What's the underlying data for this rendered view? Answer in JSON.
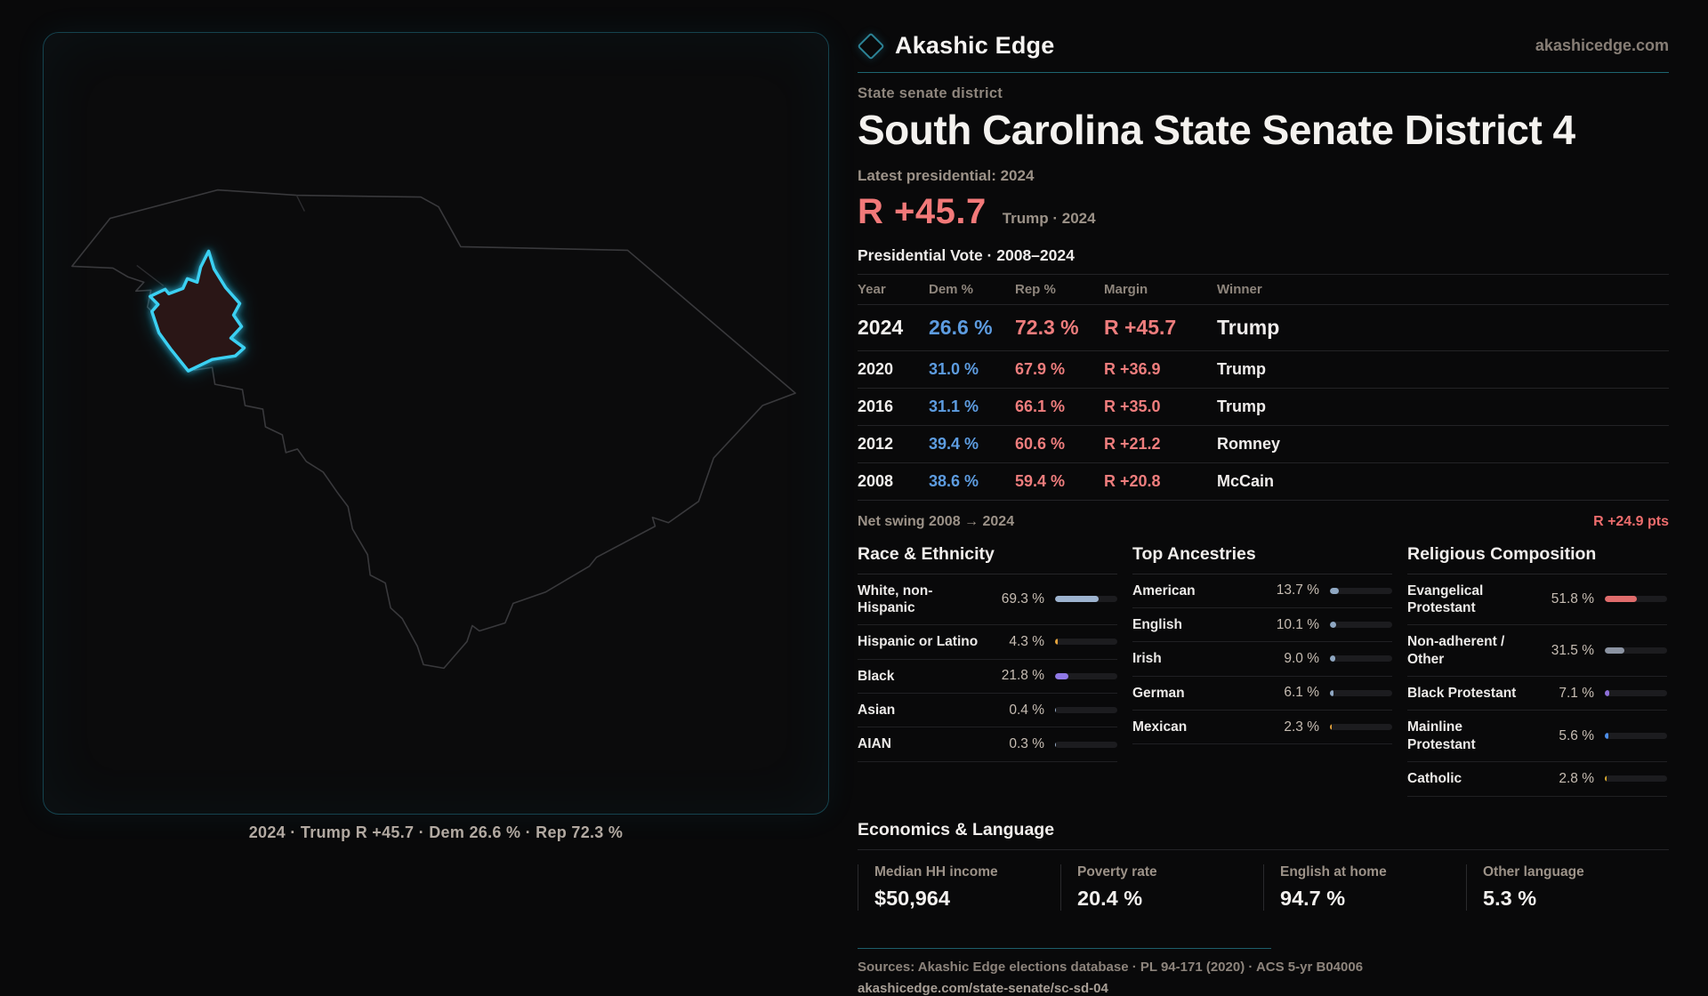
{
  "brand": {
    "name": "Akashic Edge",
    "domain": "akashicedge.com",
    "logo_icon": "diamond-outline-icon"
  },
  "map": {
    "caption": "2024 · Trump R +45.7 · Dem 26.6 % · Rep 72.3 %",
    "district_outline_color": "#3bd0f2",
    "district_fill_color": "#2a1518",
    "state_outline_color": "#39393c"
  },
  "header": {
    "kicker": "State senate district",
    "title": "South Carolina State Senate District 4",
    "latest_label": "Latest presidential: 2024",
    "margin_value": "R +45.7",
    "margin_caption": "Trump · 2024"
  },
  "table": {
    "title": "Presidential Vote · 2008–2024",
    "columns": [
      "Year",
      "Dem %",
      "Rep %",
      "Margin",
      "Winner"
    ],
    "rows": [
      {
        "year": "2024",
        "dem": "26.6 %",
        "rep": "72.3 %",
        "margin": "R +45.7",
        "winner": "Trump"
      },
      {
        "year": "2020",
        "dem": "31.0 %",
        "rep": "67.9 %",
        "margin": "R +36.9",
        "winner": "Trump"
      },
      {
        "year": "2016",
        "dem": "31.1 %",
        "rep": "66.1 %",
        "margin": "R +35.0",
        "winner": "Trump"
      },
      {
        "year": "2012",
        "dem": "39.4 %",
        "rep": "60.6 %",
        "margin": "R +21.2",
        "winner": "Romney"
      },
      {
        "year": "2008",
        "dem": "38.6 %",
        "rep": "59.4 %",
        "margin": "R +20.8",
        "winner": "McCain"
      }
    ]
  },
  "swing": {
    "label": "Net swing 2008 → 2024",
    "value": "R +24.9 pts"
  },
  "sections": [
    {
      "title": "Race & Ethnicity",
      "rows": [
        {
          "label": "White, non-Hispanic",
          "value": "69.3 %",
          "pct": 69.3,
          "color": "#9db3cf"
        },
        {
          "label": "Hispanic or Latino",
          "value": "4.3 %",
          "pct": 4.3,
          "color": "#e3a23c"
        },
        {
          "label": "Black",
          "value": "21.8 %",
          "pct": 21.8,
          "color": "#9079e6"
        },
        {
          "label": "Asian",
          "value": "0.4 %",
          "pct": 0.4,
          "color": "#9db3cf"
        },
        {
          "label": "AIAN",
          "value": "0.3 %",
          "pct": 0.3,
          "color": "#9db3cf"
        }
      ]
    },
    {
      "title": "Top Ancestries",
      "rows": [
        {
          "label": "American",
          "value": "13.7 %",
          "pct": 13.7,
          "color": "#8fa7c2"
        },
        {
          "label": "English",
          "value": "10.1 %",
          "pct": 10.1,
          "color": "#8fa7c2"
        },
        {
          "label": "Irish",
          "value": "9.0 %",
          "pct": 9.0,
          "color": "#8fa7c2"
        },
        {
          "label": "German",
          "value": "6.1 %",
          "pct": 6.1,
          "color": "#8fa7c2"
        },
        {
          "label": "Mexican",
          "value": "2.3 %",
          "pct": 2.3,
          "color": "#e3a23c"
        }
      ]
    },
    {
      "title": "Religious Composition",
      "rows": [
        {
          "label": "Evangelical Protestant",
          "value": "51.8 %",
          "pct": 51.8,
          "color": "#e06c6c"
        },
        {
          "label": "Non-adherent / Other",
          "value": "31.5 %",
          "pct": 31.5,
          "color": "#8b93a2"
        },
        {
          "label": "Black Protestant",
          "value": "7.1 %",
          "pct": 7.1,
          "color": "#8d6fd8"
        },
        {
          "label": "Mainline Protestant",
          "value": "5.6 %",
          "pct": 5.6,
          "color": "#4d8ee8"
        },
        {
          "label": "Catholic",
          "value": "2.8 %",
          "pct": 2.8,
          "color": "#d9aa2e"
        }
      ]
    }
  ],
  "economics": {
    "title": "Economics & Language",
    "stats": [
      {
        "label": "Median HH income",
        "value": "$50,964"
      },
      {
        "label": "Poverty rate",
        "value": "20.4 %"
      },
      {
        "label": "English at home",
        "value": "94.7 %"
      },
      {
        "label": "Other language",
        "value": "5.3 %"
      }
    ]
  },
  "footer": {
    "sources": "Sources: Akashic Edge elections database · PL 94-171 (2020) · ACS 5-yr B04006",
    "permalink": "akashicedge.com/state-senate/sc-sd-04"
  },
  "colors": {
    "accent_teal": "#1d6671",
    "district_cyan": "#3bd0f2",
    "dem_blue": "#5d9ce0",
    "rep_red": "#ee7d7d",
    "big_margin_red": "#f27979"
  }
}
